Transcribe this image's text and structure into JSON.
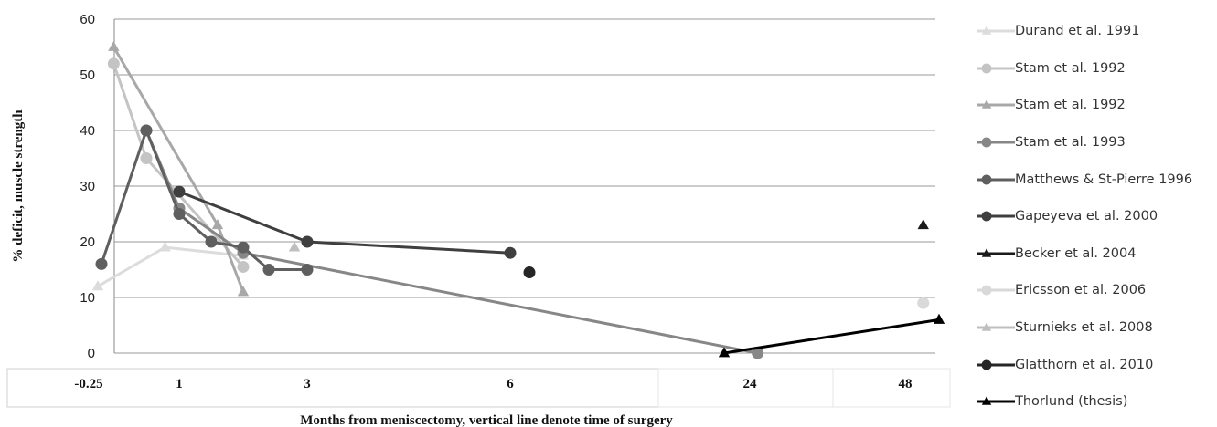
{
  "chart_data": {
    "type": "line",
    "title": "",
    "ylabel": "% deficit, muscle strength",
    "xlabel": "Months from meniscectomy, vertical line denote time of surgery",
    "ylim": [
      0,
      60
    ],
    "yticks": [
      "0",
      "10",
      "20",
      "30",
      "40",
      "50",
      "60"
    ],
    "xticks": [
      {
        "label": "-0.25",
        "x": -0.25
      },
      {
        "label": "1",
        "x": 1
      },
      {
        "label": "3",
        "x": 3
      },
      {
        "label": "6",
        "x": 6
      },
      {
        "label": "24",
        "x": 24
      },
      {
        "label": "48",
        "x": 48
      }
    ],
    "grid": true,
    "legend_position": "right",
    "series": [
      {
        "name": "Durand et al. 1991",
        "color": "#dcdcdc",
        "marker": "triangle",
        "line": true,
        "points": [
          [
            -0.4,
            12
          ],
          [
            0.7,
            19
          ],
          [
            2,
            17.5
          ]
        ]
      },
      {
        "name": "Stam et al. 1992",
        "color": "#c4c4c4",
        "marker": "circle",
        "line": true,
        "points": [
          [
            -0.1,
            52
          ],
          [
            0.3,
            35
          ],
          [
            2,
            15.5
          ]
        ]
      },
      {
        "name": "Stam et al. 1992",
        "color": "#a8a8a8",
        "marker": "triangle",
        "line": true,
        "points": [
          [
            -0.1,
            55
          ],
          [
            1.6,
            23
          ],
          [
            2,
            11
          ]
        ]
      },
      {
        "name": "Stam et al. 1993",
        "color": "#878787",
        "marker": "circle",
        "line": true,
        "points": [
          [
            0.3,
            40
          ],
          [
            1,
            26
          ],
          [
            2,
            18
          ],
          [
            25,
            0
          ]
        ]
      },
      {
        "name": "Matthews & St-Pierre 1996",
        "color": "#5f5f5f",
        "marker": "circle",
        "line": true,
        "points": [
          [
            -0.25,
            16
          ],
          [
            0.3,
            40
          ],
          [
            1,
            25
          ],
          [
            1.5,
            20
          ],
          [
            2,
            19
          ],
          [
            2.4,
            15
          ],
          [
            3,
            15
          ]
        ]
      },
      {
        "name": "Gapeyeva et al. 2000",
        "color": "#3f3f3f",
        "marker": "circle",
        "line": true,
        "points": [
          [
            1,
            29
          ],
          [
            3,
            20
          ],
          [
            6,
            18
          ]
        ]
      },
      {
        "name": "Becker et al. 2004",
        "color": "#1a1a1a",
        "marker": "triangle",
        "line": true,
        "points": [
          [
            46,
            23
          ]
        ]
      },
      {
        "name": "Ericsson et al. 2006",
        "color": "#d9d9d9",
        "marker": "circle",
        "line": true,
        "points": [
          [
            46,
            9
          ]
        ]
      },
      {
        "name": "Sturnieks et al. 2008",
        "color": "#bfbfbf",
        "marker": "triangle",
        "line": true,
        "points": [
          [
            2.8,
            19
          ]
        ]
      },
      {
        "name": "Glatthorn et al. 2010",
        "color": "#262626",
        "marker": "circle",
        "line": true,
        "points": [
          [
            6.5,
            14.5
          ]
        ]
      },
      {
        "name": "Thorlund (thesis)",
        "color": "#000000",
        "marker": "triangle",
        "line": true,
        "points": [
          [
            20,
            0
          ],
          [
            48,
            6
          ]
        ]
      }
    ]
  }
}
